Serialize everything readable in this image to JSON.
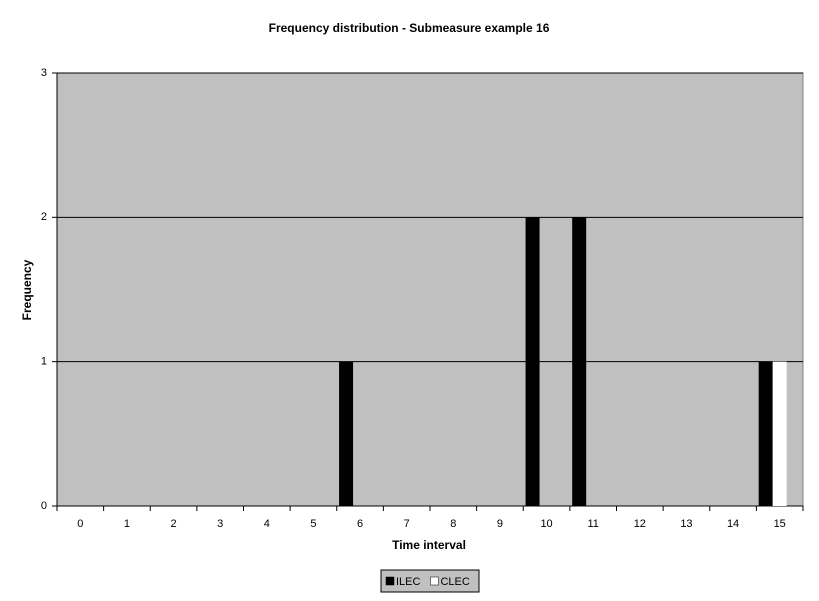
{
  "chart_data": {
    "type": "bar",
    "title": "Frequency distribution - Submeasure example 16",
    "x_label": "Time interval",
    "y_label": "Frequency",
    "categories": [
      "0",
      "1",
      "2",
      "3",
      "4",
      "5",
      "6",
      "7",
      "8",
      "9",
      "10",
      "11",
      "12",
      "13",
      "14",
      "15"
    ],
    "series": [
      {
        "name": "ILEC",
        "color": "#000000",
        "values": [
          0,
          0,
          0,
          0,
          0,
          0,
          1,
          0,
          0,
          0,
          2,
          2,
          0,
          0,
          0,
          1
        ]
      },
      {
        "name": "CLEC",
        "color": "#ffffff",
        "values": [
          0,
          0,
          0,
          0,
          0,
          0,
          0,
          0,
          0,
          0,
          0,
          0,
          0,
          0,
          0,
          1
        ]
      }
    ],
    "ylim": [
      0,
      3
    ],
    "yticks": [
      0,
      1,
      2,
      3
    ],
    "grid": true,
    "legend": "bottom",
    "background": "#c0c0c0"
  }
}
